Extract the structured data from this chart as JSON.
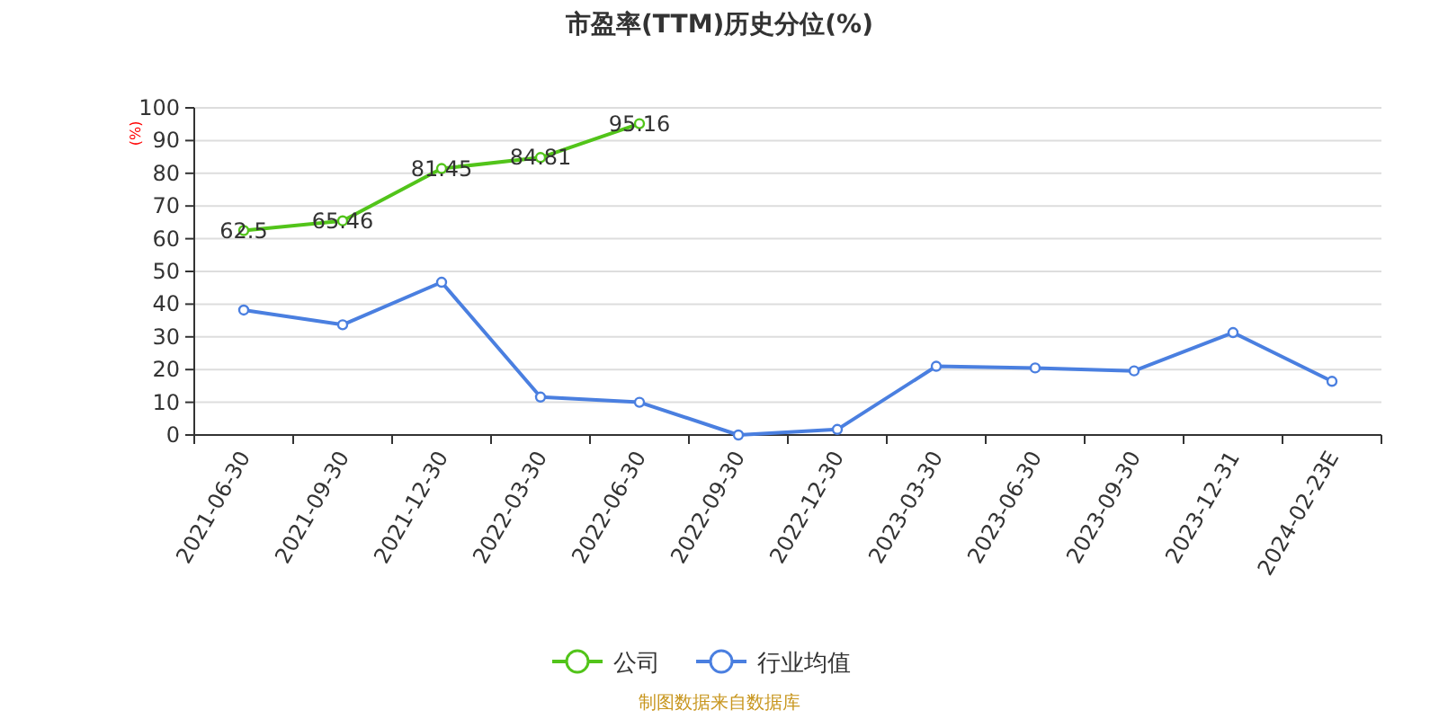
{
  "chart_data": {
    "type": "line",
    "title": "市盈率(TTM)历史分位(%)",
    "ylabel": "(%)",
    "categories": [
      "2021-06-30",
      "2021-09-30",
      "2021-12-30",
      "2022-03-30",
      "2022-06-30",
      "2022-09-30",
      "2022-12-30",
      "2023-03-30",
      "2023-06-30",
      "2023-09-30",
      "2023-12-31",
      "2024-02-23E"
    ],
    "series": [
      {
        "name": "公司",
        "color": "#52c41a",
        "values": [
          62.5,
          65.46,
          81.45,
          84.81,
          95.16,
          null,
          null,
          null,
          null,
          null,
          null,
          null
        ],
        "value_labels": [
          "62.5",
          "65.46",
          "81.45",
          "84.81",
          "95.16",
          null,
          null,
          null,
          null,
          null,
          null,
          null
        ]
      },
      {
        "name": "行业均值",
        "color": "#4a7fe0",
        "values": [
          38.2,
          33.7,
          46.7,
          11.6,
          10.0,
          0,
          1.7,
          21.0,
          20.5,
          19.6,
          31.3,
          16.4
        ]
      }
    ],
    "ylim": [
      0,
      100
    ],
    "yticks": [
      0,
      10,
      20,
      30,
      40,
      50,
      60,
      70,
      80,
      90,
      100
    ],
    "grid": "y",
    "legend": "bottom",
    "marker": "circle",
    "annotations": [
      "制图数据来自数据库"
    ]
  }
}
